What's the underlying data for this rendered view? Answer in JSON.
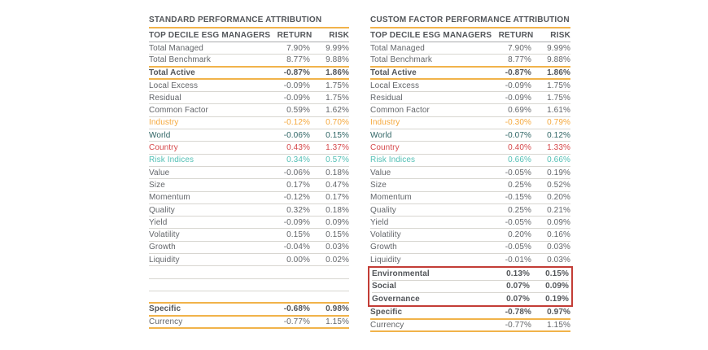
{
  "colors": {
    "accent_gold": "#F1B34A",
    "row_separator": "#D8D6D1",
    "text_normal": "#63666A",
    "text_dark": "#53565A",
    "industry_orange": "#F5A83C",
    "world_dark_teal": "#2E6464",
    "country_red": "#D5484A",
    "risk_indices_teal": "#52BFB4",
    "esg_box_red": "#C33D36"
  },
  "tables": [
    {
      "title": "STANDARD PERFORMANCE ATTRIBUTION",
      "columns": [
        "TOP DECILE ESG MANAGERS",
        "RETURN",
        "RISK"
      ],
      "rows": [
        {
          "label": "Total Managed",
          "ret": "7.90%",
          "risk": "9.99%"
        },
        {
          "label": "Total Benchmark",
          "ret": "8.77%",
          "risk": "9.88%",
          "rule": "gold"
        },
        {
          "label": "Total Active",
          "ret": "-0.87%",
          "risk": "1.86%",
          "bold": true,
          "rule": "gold"
        },
        {
          "label": "Local Excess",
          "ret": "-0.09%",
          "risk": "1.75%"
        },
        {
          "label": "Residual",
          "ret": "-0.09%",
          "risk": "1.75%"
        },
        {
          "label": "Common Factor",
          "ret": "0.59%",
          "risk": "1.62%"
        },
        {
          "label": "Industry",
          "ret": "-0.12%",
          "risk": "0.70%",
          "color": "orange"
        },
        {
          "label": "World",
          "ret": "-0.06%",
          "risk": "0.15%",
          "color": "darkteal"
        },
        {
          "label": "Country",
          "ret": "0.43%",
          "risk": "1.37%",
          "color": "red"
        },
        {
          "label": "Risk Indices",
          "ret": "0.34%",
          "risk": "0.57%",
          "color": "teal"
        },
        {
          "label": "Value",
          "ret": "-0.06%",
          "risk": "0.18%"
        },
        {
          "label": "Size",
          "ret": "0.17%",
          "risk": "0.47%"
        },
        {
          "label": "Momentum",
          "ret": "-0.12%",
          "risk": "0.17%"
        },
        {
          "label": "Quality",
          "ret": "0.32%",
          "risk": "0.18%"
        },
        {
          "label": "Yield",
          "ret": "-0.09%",
          "risk": "0.09%"
        },
        {
          "label": "Volatility",
          "ret": "0.15%",
          "risk": "0.15%"
        },
        {
          "label": "Growth",
          "ret": "-0.04%",
          "risk": "0.03%"
        },
        {
          "label": "Liquidity",
          "ret": "0.00%",
          "risk": "0.02%"
        },
        {
          "label": "",
          "ret": "",
          "risk": ""
        },
        {
          "label": "",
          "ret": "",
          "risk": ""
        },
        {
          "label": "",
          "ret": "",
          "risk": "",
          "rule": "gold"
        },
        {
          "label": "Specific",
          "ret": "-0.68%",
          "risk": "0.98%",
          "bold": true,
          "rule": "gold"
        },
        {
          "label": "Currency",
          "ret": "-0.77%",
          "risk": "1.15%",
          "rule": "gold"
        }
      ]
    },
    {
      "title": "CUSTOM FACTOR PERFORMANCE ATTRIBUTION",
      "columns": [
        "TOP DECILE ESG MANAGERS",
        "RETURN",
        "RISK"
      ],
      "rows": [
        {
          "label": "Total Managed",
          "ret": "7.90%",
          "risk": "9.99%"
        },
        {
          "label": "Total Benchmark",
          "ret": "8.77%",
          "risk": "9.88%",
          "rule": "gold"
        },
        {
          "label": "Total Active",
          "ret": "-0.87%",
          "risk": "1.86%",
          "bold": true,
          "rule": "gold"
        },
        {
          "label": "Local Excess",
          "ret": "-0.09%",
          "risk": "1.75%"
        },
        {
          "label": "Residual",
          "ret": "-0.09%",
          "risk": "1.75%"
        },
        {
          "label": "Common Factor",
          "ret": "0.69%",
          "risk": "1.61%"
        },
        {
          "label": "Industry",
          "ret": "-0.30%",
          "risk": "0.79%",
          "color": "orange"
        },
        {
          "label": "World",
          "ret": "-0.07%",
          "risk": "0.12%",
          "color": "darkteal"
        },
        {
          "label": "Country",
          "ret": "0.40%",
          "risk": "1.33%",
          "color": "red"
        },
        {
          "label": "Risk Indices",
          "ret": "0.66%",
          "risk": "0.66%",
          "color": "teal"
        },
        {
          "label": "Value",
          "ret": "-0.05%",
          "risk": "0.19%"
        },
        {
          "label": "Size",
          "ret": "0.25%",
          "risk": "0.52%"
        },
        {
          "label": "Momentum",
          "ret": "-0.15%",
          "risk": "0.20%"
        },
        {
          "label": "Quality",
          "ret": "0.25%",
          "risk": "0.21%"
        },
        {
          "label": "Yield",
          "ret": "-0.05%",
          "risk": "0.09%"
        },
        {
          "label": "Volatility",
          "ret": "0.20%",
          "risk": "0.16%"
        },
        {
          "label": "Growth",
          "ret": "-0.05%",
          "risk": "0.03%"
        },
        {
          "label": "Liquidity",
          "ret": "-0.01%",
          "risk": "0.03%",
          "rule": "none"
        },
        {
          "label": "Environmental",
          "ret": "0.13%",
          "risk": "0.15%",
          "bold": true,
          "group": "esg"
        },
        {
          "label": "Social",
          "ret": "0.07%",
          "risk": "0.09%",
          "bold": true,
          "group": "esg"
        },
        {
          "label": "Governance",
          "ret": "0.07%",
          "risk": "0.19%",
          "bold": true,
          "group": "esg",
          "rule": "none"
        },
        {
          "label": "Specific",
          "ret": "-0.78%",
          "risk": "0.97%",
          "bold": true,
          "rule": "gold"
        },
        {
          "label": "Currency",
          "ret": "-0.77%",
          "risk": "1.15%",
          "rule": "gold"
        }
      ]
    }
  ]
}
